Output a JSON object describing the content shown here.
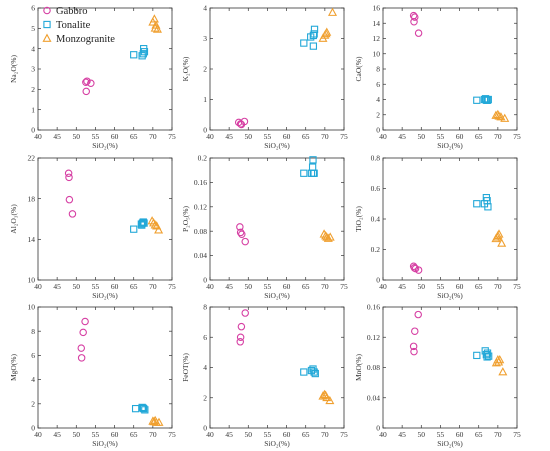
{
  "colors": {
    "Gabbro": "#d63fa3",
    "Tonalite": "#22a8d8",
    "Monzogranite": "#f0a030"
  },
  "legend": [
    {
      "name": "Gabbro",
      "marker": "circle"
    },
    {
      "name": "Tonalite",
      "marker": "square"
    },
    {
      "name": "Monzogranite",
      "marker": "triangle"
    }
  ],
  "chart_data": [
    {
      "type": "scatter",
      "xlabel": "SiO₂(%)",
      "ylabel": "Na₂O(%)",
      "xlim": [
        40,
        75
      ],
      "ylim": [
        0,
        6
      ],
      "xticks": [
        40,
        45,
        50,
        55,
        60,
        65,
        70,
        75
      ],
      "yticks": [
        0,
        1,
        2,
        3,
        4,
        5,
        6
      ],
      "series": [
        {
          "name": "Gabbro",
          "x": [
            52.5,
            52.8,
            53.8,
            52.6
          ],
          "y": [
            2.35,
            2.4,
            2.3,
            1.9
          ]
        },
        {
          "name": "Tonalite",
          "x": [
            65.0,
            67.2,
            67.5,
            67.8,
            67.6
          ],
          "y": [
            3.7,
            3.65,
            3.75,
            3.85,
            4.0
          ]
        },
        {
          "name": "Monzogranite",
          "x": [
            70.0,
            70.4,
            70.8,
            71.2,
            70.6
          ],
          "y": [
            5.3,
            5.45,
            5.15,
            4.95,
            5.0
          ]
        }
      ]
    },
    {
      "type": "scatter",
      "xlabel": "SiO₂(%)",
      "ylabel": "K₂O(%)",
      "xlim": [
        40,
        75
      ],
      "ylim": [
        0,
        4
      ],
      "xticks": [
        40,
        45,
        50,
        55,
        60,
        65,
        70,
        75
      ],
      "yticks": [
        0,
        1,
        2,
        3,
        4
      ],
      "series": [
        {
          "name": "Gabbro",
          "x": [
            47.5,
            48.0,
            49.0,
            48.2
          ],
          "y": [
            0.25,
            0.2,
            0.28,
            0.18
          ]
        },
        {
          "name": "Tonalite",
          "x": [
            64.5,
            66.3,
            67.0,
            67.2,
            67.3,
            67.0
          ],
          "y": [
            2.85,
            3.05,
            3.1,
            3.15,
            3.3,
            2.75
          ]
        },
        {
          "name": "Monzogranite",
          "x": [
            69.5,
            70.0,
            70.3,
            70.5,
            72.0
          ],
          "y": [
            3.0,
            3.1,
            3.15,
            3.2,
            3.85
          ]
        }
      ]
    },
    {
      "type": "scatter",
      "xlabel": "SiO₂(%)",
      "ylabel": "CaO(%)",
      "xlim": [
        40,
        75
      ],
      "ylim": [
        0,
        16
      ],
      "xticks": [
        40,
        45,
        50,
        55,
        60,
        65,
        70,
        75
      ],
      "yticks": [
        0,
        2,
        4,
        6,
        8,
        10,
        12,
        14,
        16
      ],
      "series": [
        {
          "name": "Gabbro",
          "x": [
            48.0,
            48.3,
            48.1,
            49.3
          ],
          "y": [
            15.0,
            14.8,
            14.2,
            12.7
          ]
        },
        {
          "name": "Tonalite",
          "x": [
            64.5,
            66.5,
            67.0,
            67.3,
            66.8,
            67.5
          ],
          "y": [
            3.9,
            4.0,
            3.9,
            3.9,
            4.1,
            4.0
          ]
        },
        {
          "name": "Monzogranite",
          "x": [
            69.5,
            70.0,
            70.3,
            70.8,
            71.8
          ],
          "y": [
            1.9,
            2.0,
            1.8,
            1.7,
            1.5
          ]
        }
      ]
    },
    {
      "type": "scatter",
      "xlabel": "SiO₂(%)",
      "ylabel": "Al₂O₃(%)",
      "xlim": [
        40,
        75
      ],
      "ylim": [
        10,
        22
      ],
      "xticks": [
        40,
        45,
        50,
        55,
        60,
        65,
        70,
        75
      ],
      "yticks": [
        10,
        14,
        18,
        22
      ],
      "series": [
        {
          "name": "Gabbro",
          "x": [
            48.0,
            48.1,
            48.2,
            49.0
          ],
          "y": [
            20.5,
            20.1,
            17.9,
            16.5
          ]
        },
        {
          "name": "Tonalite",
          "x": [
            65.0,
            67.0,
            67.3,
            67.5,
            67.1,
            67.7
          ],
          "y": [
            15.0,
            15.5,
            15.6,
            15.7,
            15.4,
            15.6
          ]
        },
        {
          "name": "Monzogranite",
          "x": [
            69.8,
            70.2,
            70.6,
            71.0,
            71.5
          ],
          "y": [
            15.8,
            15.6,
            15.4,
            15.3,
            14.9
          ]
        }
      ]
    },
    {
      "type": "scatter",
      "xlabel": "SiO₂(%)",
      "ylabel": "P₂O₅(%)",
      "xlim": [
        40,
        75
      ],
      "ylim": [
        0,
        0.2
      ],
      "xticks": [
        40,
        45,
        50,
        55,
        60,
        65,
        70,
        75
      ],
      "yticks": [
        0,
        0.04,
        0.08,
        0.12,
        0.16,
        0.2
      ],
      "series": [
        {
          "name": "Gabbro",
          "x": [
            47.8,
            48.0,
            48.3,
            49.2
          ],
          "y": [
            0.087,
            0.078,
            0.075,
            0.063
          ]
        },
        {
          "name": "Tonalite",
          "x": [
            64.5,
            66.5,
            66.8,
            67.0,
            67.2,
            66.9
          ],
          "y": [
            0.175,
            0.175,
            0.185,
            0.175,
            0.175,
            0.197
          ]
        },
        {
          "name": "Monzogranite",
          "x": [
            69.8,
            70.2,
            70.5,
            70.9,
            71.4
          ],
          "y": [
            0.075,
            0.072,
            0.07,
            0.068,
            0.07
          ]
        }
      ]
    },
    {
      "type": "scatter",
      "xlabel": "SiO₂(%)",
      "ylabel": "TiO₂(%)",
      "xlim": [
        40,
        75
      ],
      "ylim": [
        0,
        0.8
      ],
      "xticks": [
        40,
        45,
        50,
        55,
        60,
        65,
        70,
        75
      ],
      "yticks": [
        0,
        0.2,
        0.4,
        0.6,
        0.8
      ],
      "series": [
        {
          "name": "Gabbro",
          "x": [
            48.0,
            48.2,
            48.5,
            49.3
          ],
          "y": [
            0.09,
            0.08,
            0.075,
            0.065
          ]
        },
        {
          "name": "Tonalite",
          "x": [
            64.5,
            66.5,
            67.0,
            67.2,
            67.4
          ],
          "y": [
            0.5,
            0.5,
            0.54,
            0.52,
            0.48
          ]
        },
        {
          "name": "Monzogranite",
          "x": [
            69.5,
            69.8,
            70.0,
            70.3,
            71.0
          ],
          "y": [
            0.27,
            0.28,
            0.29,
            0.3,
            0.24
          ]
        }
      ]
    },
    {
      "type": "scatter",
      "xlabel": "SiO₂(%)",
      "ylabel": "MgO(%)",
      "xlim": [
        40,
        75
      ],
      "ylim": [
        0,
        10
      ],
      "xticks": [
        40,
        45,
        50,
        55,
        60,
        65,
        70,
        75
      ],
      "yticks": [
        0,
        2,
        4,
        6,
        8,
        10
      ],
      "series": [
        {
          "name": "Gabbro",
          "x": [
            52.3,
            51.8,
            51.3,
            51.4
          ],
          "y": [
            8.8,
            7.9,
            6.6,
            5.8
          ]
        },
        {
          "name": "Tonalite",
          "x": [
            65.5,
            67.2,
            67.6,
            67.9,
            67.4
          ],
          "y": [
            1.6,
            1.7,
            1.6,
            1.5,
            1.65
          ]
        },
        {
          "name": "Monzogranite",
          "x": [
            70.0,
            70.3,
            70.6,
            70.9,
            71.6
          ],
          "y": [
            0.55,
            0.5,
            0.6,
            0.45,
            0.45
          ]
        }
      ]
    },
    {
      "type": "scatter",
      "xlabel": "SiO₂(%)",
      "ylabel": "FeOT(%)",
      "xlim": [
        40,
        75
      ],
      "ylim": [
        0,
        8
      ],
      "xticks": [
        40,
        45,
        50,
        55,
        60,
        65,
        70,
        75
      ],
      "yticks": [
        0,
        2,
        4,
        6,
        8
      ],
      "series": [
        {
          "name": "Gabbro",
          "x": [
            49.2,
            48.2,
            48.0,
            47.9
          ],
          "y": [
            7.6,
            6.7,
            6.0,
            5.7
          ]
        },
        {
          "name": "Tonalite",
          "x": [
            64.5,
            66.5,
            66.9,
            67.2,
            67.5
          ],
          "y": [
            3.7,
            3.8,
            3.9,
            3.7,
            3.6
          ]
        },
        {
          "name": "Monzogranite",
          "x": [
            69.5,
            69.9,
            70.2,
            70.5,
            71.3
          ],
          "y": [
            2.1,
            2.2,
            2.15,
            2.0,
            1.8
          ]
        }
      ]
    },
    {
      "type": "scatter",
      "xlabel": "SiO₂(%)",
      "ylabel": "MnO(%)",
      "xlim": [
        40,
        75
      ],
      "ylim": [
        0,
        0.16
      ],
      "xticks": [
        40,
        45,
        50,
        55,
        60,
        65,
        70,
        75
      ],
      "yticks": [
        0,
        0.04,
        0.08,
        0.12,
        0.16
      ],
      "series": [
        {
          "name": "Gabbro",
          "x": [
            49.2,
            48.3,
            48.0,
            48.1
          ],
          "y": [
            0.15,
            0.128,
            0.108,
            0.101
          ]
        },
        {
          "name": "Tonalite",
          "x": [
            64.5,
            66.7,
            67.0,
            67.2,
            67.3,
            67.6
          ],
          "y": [
            0.096,
            0.102,
            0.097,
            0.094,
            0.099,
            0.095
          ]
        },
        {
          "name": "Monzogranite",
          "x": [
            69.6,
            70.0,
            70.2,
            70.5,
            71.3
          ],
          "y": [
            0.086,
            0.09,
            0.087,
            0.09,
            0.074
          ]
        }
      ]
    }
  ]
}
